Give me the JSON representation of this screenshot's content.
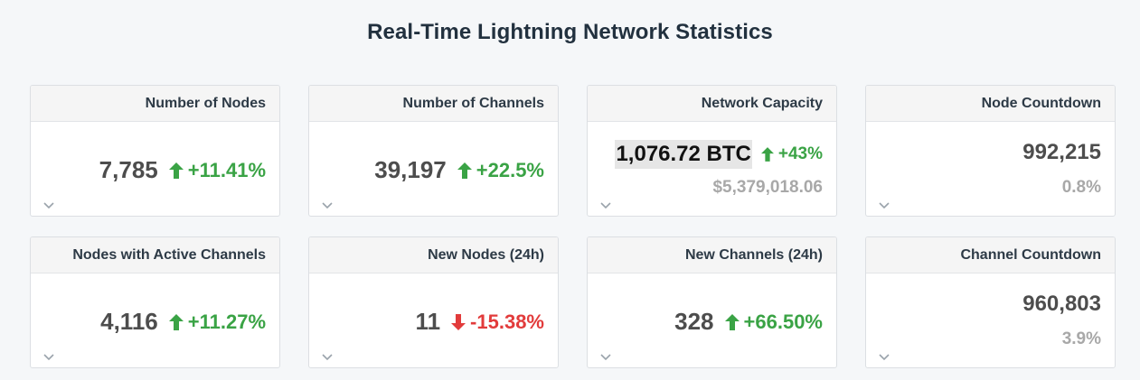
{
  "page": {
    "title": "Real-Time Lightning Network Statistics"
  },
  "cards": [
    {
      "label": "Number of Nodes",
      "value": "7,785",
      "change": "+11.41%",
      "direction": "up"
    },
    {
      "label": "Number of Channels",
      "value": "39,197",
      "change": "+22.5%",
      "direction": "up"
    },
    {
      "label": "Network Capacity",
      "value": "1,076.72 BTC",
      "change": "+43%",
      "direction": "up",
      "secondary": "$5,379,018.06"
    },
    {
      "label": "Node Countdown",
      "value": "992,215",
      "secondary": "0.8%"
    },
    {
      "label": "Nodes with Active Channels",
      "value": "4,116",
      "change": "+11.27%",
      "direction": "up"
    },
    {
      "label": "New Nodes (24h)",
      "value": "11",
      "change": "-15.38%",
      "direction": "down"
    },
    {
      "label": "New Channels (24h)",
      "value": "328",
      "change": "+66.50%",
      "direction": "up"
    },
    {
      "label": "Channel Countdown",
      "value": "960,803",
      "secondary": "3.9%"
    }
  ],
  "colors": {
    "up": "#3aa345",
    "down": "#e23b3b",
    "muted": "#a8a8a8"
  },
  "icons": {
    "up": "arrow-up-icon",
    "down": "arrow-down-icon",
    "expand": "chevron-down-icon"
  }
}
